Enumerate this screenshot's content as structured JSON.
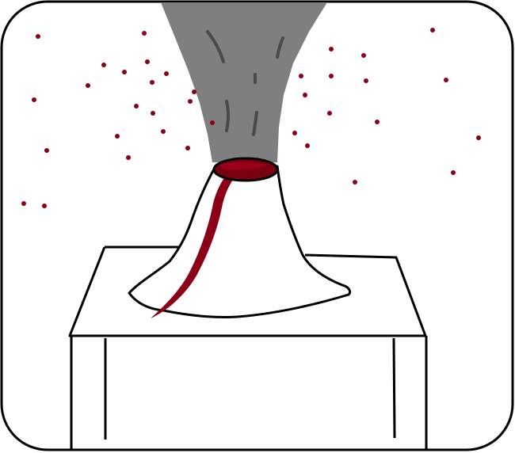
{
  "illustration": {
    "subject": "volcano-on-table",
    "colors": {
      "background": "#ffffff",
      "outline": "#000000",
      "smoke": "#7f7f7f",
      "smoke_streaks": "#4a4a4a",
      "lava": "#8b0016",
      "crater_lava": "#78000f",
      "sparks": "#8b0016"
    }
  }
}
